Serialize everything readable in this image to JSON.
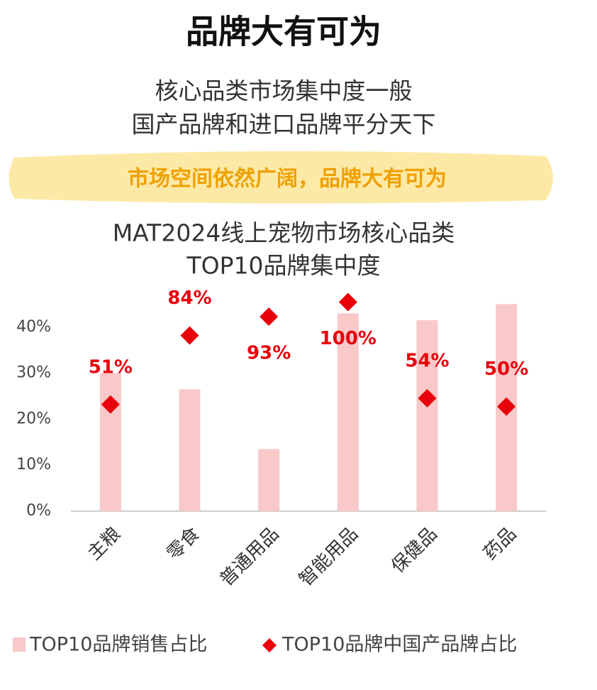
{
  "header": {
    "title": "品牌大有可为",
    "subtitle_lines": [
      "核心品类市场集中度一般",
      "国产品牌和进口品牌平分天下"
    ],
    "highlight": "市场空间依然广阔，品牌大有可为"
  },
  "chart_data": {
    "type": "bar_diamond",
    "title_lines": [
      "MAT2024线上宠物市场核心品类",
      "TOP10品牌集中度"
    ],
    "categories": [
      "主粮",
      "零食",
      "普通用品",
      "智能用品",
      "保健品",
      "药品"
    ],
    "series": [
      {
        "name": "TOP10品牌销售占比",
        "color": "#f9c8c8",
        "values": [
          30,
          26.5,
          13.5,
          43,
          41.5,
          45
        ]
      },
      {
        "name": "TOP10品牌中国产品牌占比",
        "color": "#e8000b",
        "axis": "y2",
        "values": [
          51,
          84,
          93,
          100,
          54,
          50
        ],
        "value_labels": [
          "51%",
          "84%",
          "93%",
          "100%",
          "54%",
          "50%"
        ]
      }
    ],
    "ylim": [
      0,
      50
    ],
    "yticks": [
      {
        "value": 0,
        "label": "0%"
      },
      {
        "value": 10,
        "label": "10%"
      },
      {
        "value": 20,
        "label": "20%"
      },
      {
        "value": 30,
        "label": "30%"
      },
      {
        "value": 40,
        "label": "40%"
      }
    ],
    "y2lim": [
      0,
      110
    ],
    "legend": "bottom"
  }
}
